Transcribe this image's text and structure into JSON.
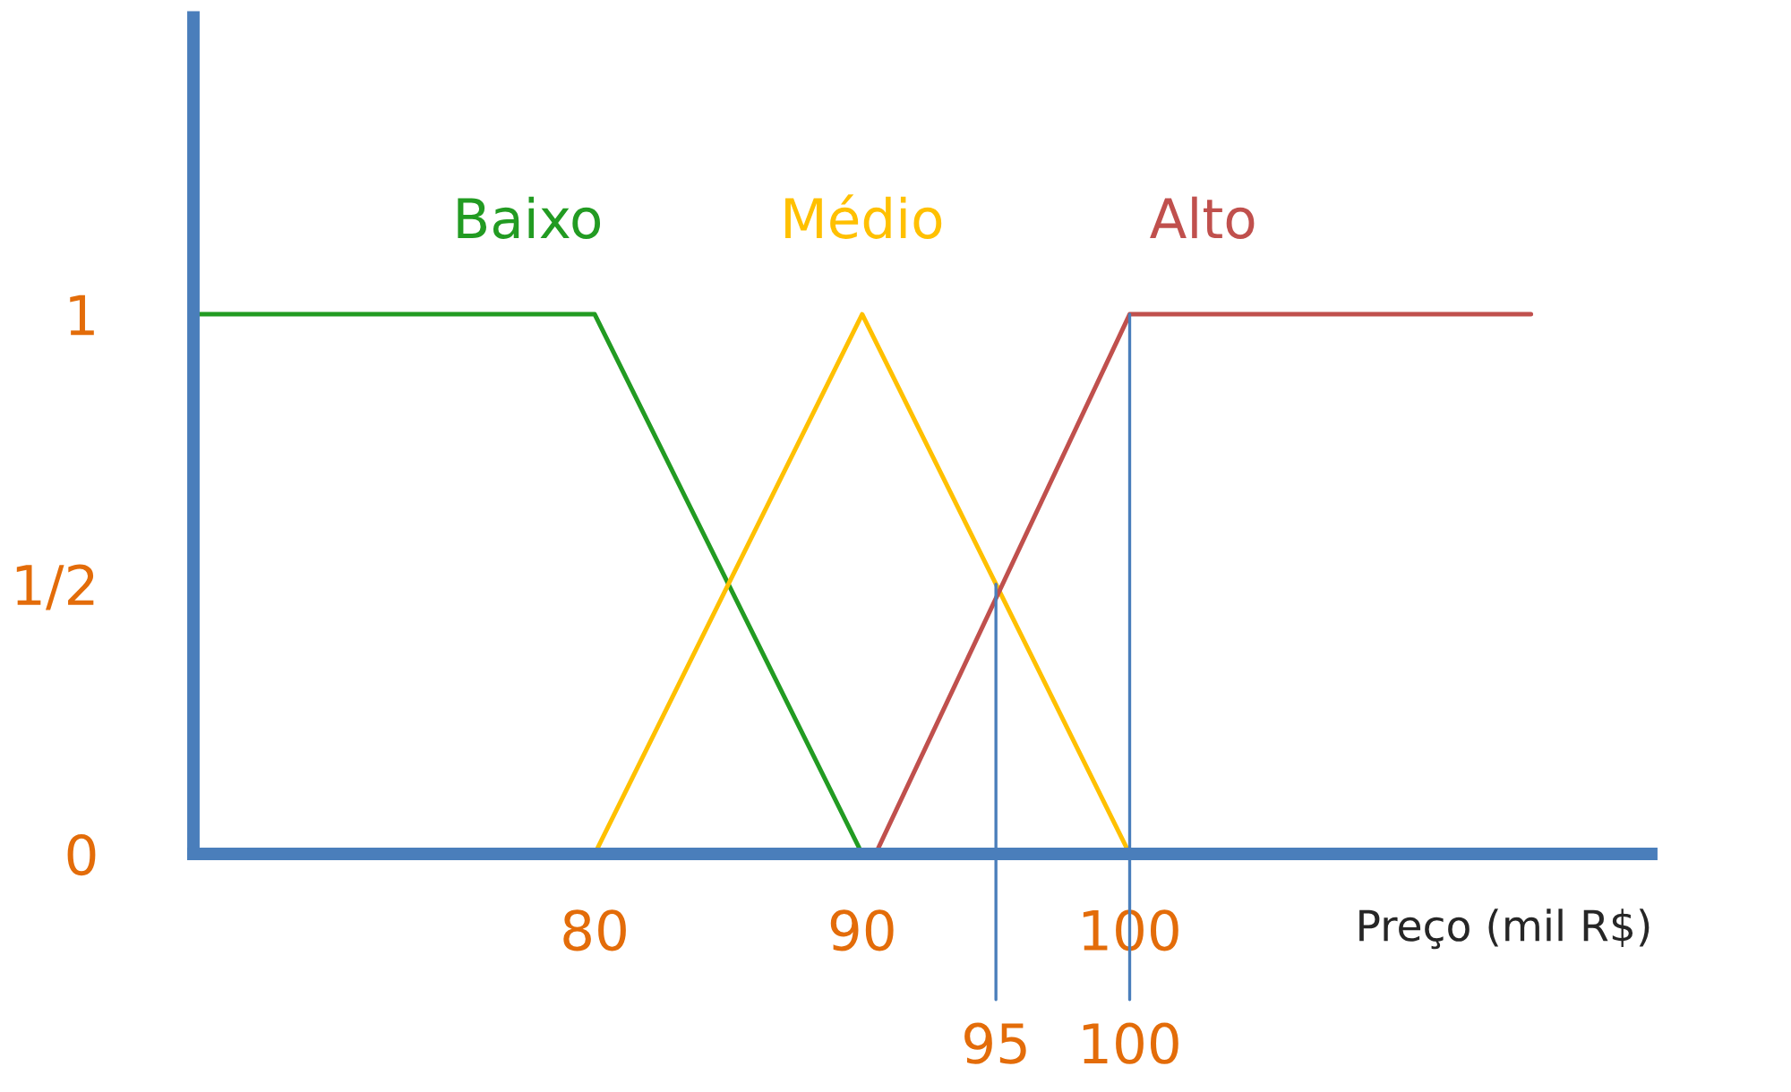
{
  "chart_data": {
    "type": "line",
    "xlabel": "Preço (mil R$)",
    "series": [
      {
        "name": "Baixo",
        "color": "#229b22",
        "x": [
          65,
          80,
          90
        ],
        "values": [
          1,
          1,
          0
        ]
      },
      {
        "name": "Médio",
        "color": "#ffc000",
        "x": [
          80,
          90,
          100
        ],
        "values": [
          0,
          1,
          0
        ]
      },
      {
        "name": "Alto",
        "color": "#c0504d",
        "x": [
          90.5,
          100,
          115
        ],
        "values": [
          0,
          1,
          1
        ]
      }
    ],
    "xlim": [
      65,
      119.5
    ],
    "ylim": [
      0,
      1.55
    ],
    "xticks": [
      80,
      90,
      100
    ],
    "yticks": [
      0,
      {
        "value": 0.5,
        "label": "1/2"
      },
      1
    ],
    "ref_lines": [
      {
        "axis": "x",
        "value": 95,
        "label": "95",
        "color": "#4a7ebb"
      },
      {
        "axis": "x",
        "value": 100,
        "label": "100",
        "color": "#4a7ebb"
      }
    ],
    "grid": false,
    "legend": false,
    "marker": "none",
    "line_style": "solid"
  }
}
